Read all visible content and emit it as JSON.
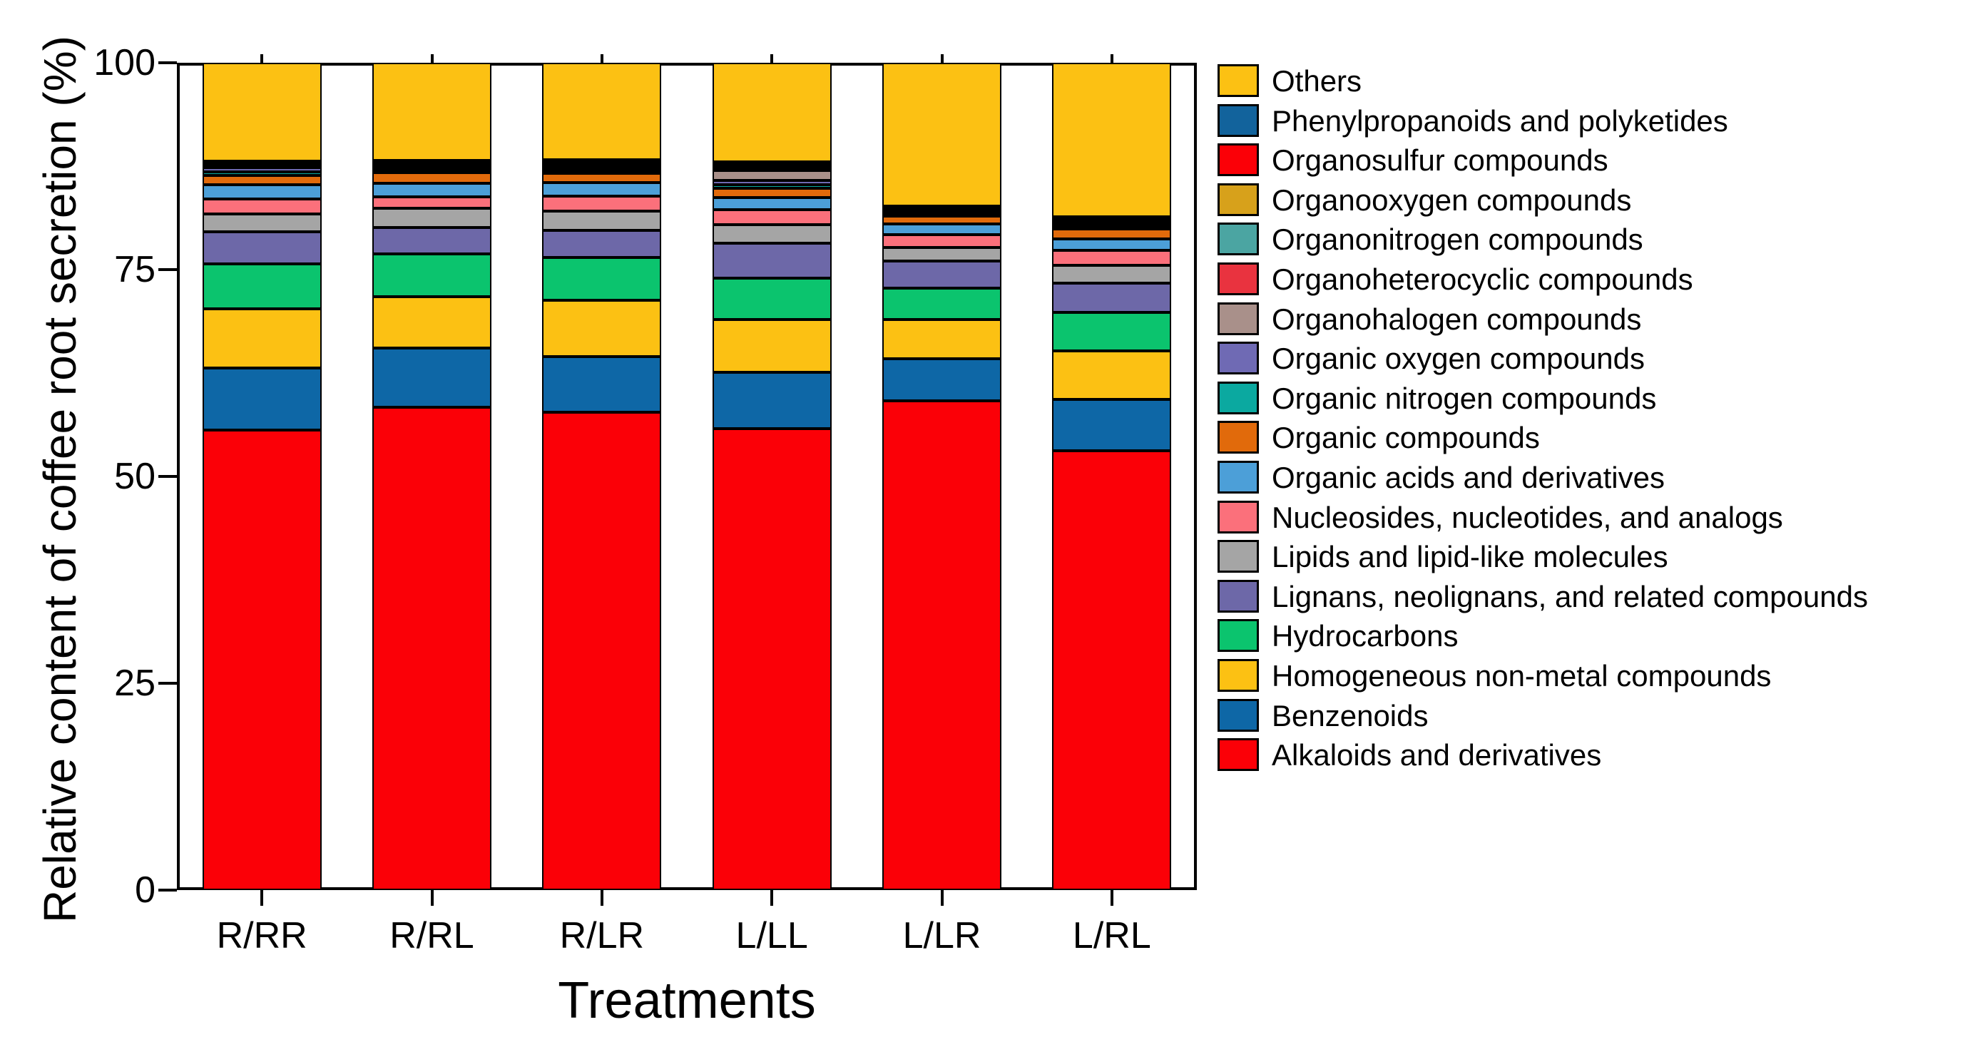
{
  "figure": {
    "y_axis_title": "Relative content of coffee root secretion (%)",
    "x_axis_title": "Treatments"
  },
  "chart_data": {
    "type": "bar",
    "stacked": true,
    "title": "",
    "xlabel": "Treatments",
    "ylabel": "Relative content of coffee root secretion (%)",
    "ylim": [
      0,
      100
    ],
    "y_ticks": [
      0,
      25,
      50,
      75,
      100
    ],
    "grid": false,
    "legend_position": "right",
    "categories": [
      "R/RR",
      "R/RL",
      "R/LR",
      "L/LL",
      "L/LR",
      "L/RL"
    ],
    "series": [
      {
        "name": "Alkaloids and derivatives",
        "color": "#FB0007",
        "values": [
          55.6,
          58.4,
          57.8,
          55.8,
          59.1,
          53.1
        ]
      },
      {
        "name": "Benzenoids",
        "color": "#0E67A6",
        "values": [
          7.5,
          7.1,
          6.7,
          6.8,
          5.1,
          6.2
        ]
      },
      {
        "name": "Homogeneous non-metal compounds",
        "color": "#FCC113",
        "values": [
          7.2,
          6.2,
          6.8,
          6.4,
          4.8,
          5.9
        ]
      },
      {
        "name": "Hydrocarbons",
        "color": "#0BC46E",
        "values": [
          5.4,
          5.2,
          5.2,
          5.0,
          3.8,
          4.6
        ]
      },
      {
        "name": "Lignans, neolignans, and related compounds",
        "color": "#6D68A8",
        "values": [
          3.9,
          3.2,
          3.2,
          4.2,
          3.2,
          3.6
        ]
      },
      {
        "name": "Lipids and lipid-like molecules",
        "color": "#A5A5A5",
        "values": [
          2.1,
          2.3,
          2.4,
          2.2,
          1.7,
          2.1
        ]
      },
      {
        "name": "Nucleosides, nucleotides, and analogs",
        "color": "#FB707B",
        "values": [
          1.8,
          1.4,
          1.8,
          1.8,
          1.5,
          1.8
        ]
      },
      {
        "name": "Organic acids and derivatives",
        "color": "#4C9FD8",
        "values": [
          1.8,
          1.6,
          1.6,
          1.5,
          1.3,
          1.4
        ]
      },
      {
        "name": "Organic compounds",
        "color": "#E16A0B",
        "values": [
          1.1,
          1.3,
          1.1,
          1.1,
          1.0,
          1.2
        ]
      },
      {
        "name": "Organic nitrogen compounds",
        "color": "#0BA9A0",
        "values": [
          0.45,
          0.4,
          0.4,
          0.5,
          0.25,
          0.3
        ]
      },
      {
        "name": "Organic oxygen compounds",
        "color": "#6F6AB4",
        "values": [
          0.5,
          0.3,
          0.3,
          0.5,
          0.25,
          0.3
        ]
      },
      {
        "name": "Organohalogen compounds",
        "color": "#A9908A",
        "values": [
          0.15,
          0.15,
          0.2,
          1.2,
          0.1,
          0.15
        ]
      },
      {
        "name": "Organoheterocyclic compounds",
        "color": "#E9333F",
        "values": [
          0.15,
          0.15,
          0.2,
          0.3,
          0.15,
          0.2
        ]
      },
      {
        "name": "Organonitrogen compounds",
        "color": "#4BA5A2",
        "values": [
          0.1,
          0.1,
          0.1,
          0.15,
          0.1,
          0.1
        ]
      },
      {
        "name": "Organooxygen compounds",
        "color": "#D7A11B",
        "values": [
          0.1,
          0.1,
          0.1,
          0.15,
          0.1,
          0.1
        ]
      },
      {
        "name": "Organosulfur compounds",
        "color": "#FB0007",
        "values": [
          0.1,
          0.1,
          0.1,
          0.15,
          0.1,
          0.1
        ]
      },
      {
        "name": "Phenylpropanoids and polyketides",
        "color": "#12639C",
        "values": [
          0.15,
          0.2,
          0.3,
          0.25,
          0.15,
          0.25
        ]
      },
      {
        "name": "Others",
        "color": "#FCC113",
        "values": [
          11.9,
          11.8,
          11.7,
          12.0,
          17.3,
          18.6
        ]
      }
    ]
  }
}
